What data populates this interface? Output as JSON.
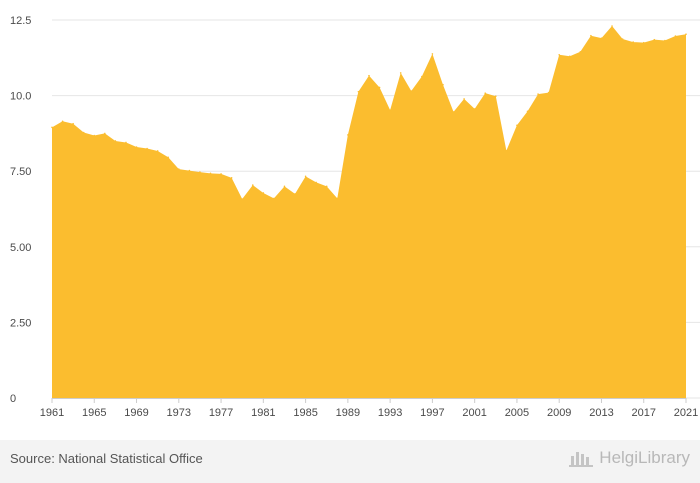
{
  "chart_data": {
    "type": "area",
    "color": "#FBBD2F",
    "x": [
      1961,
      1962,
      1963,
      1964,
      1965,
      1966,
      1967,
      1968,
      1969,
      1970,
      1971,
      1972,
      1973,
      1974,
      1975,
      1976,
      1977,
      1978,
      1979,
      1980,
      1981,
      1982,
      1983,
      1984,
      1985,
      1986,
      1987,
      1988,
      1989,
      1990,
      1991,
      1992,
      1993,
      1994,
      1995,
      1996,
      1997,
      1998,
      1999,
      2000,
      2001,
      2002,
      2003,
      2004,
      2005,
      2006,
      2007,
      2008,
      2009,
      2010,
      2011,
      2012,
      2013,
      2014,
      2015,
      2016,
      2017,
      2018,
      2019,
      2020,
      2021
    ],
    "values": [
      8.95,
      9.15,
      9.07,
      8.78,
      8.68,
      8.75,
      8.5,
      8.45,
      8.3,
      8.25,
      8.17,
      7.96,
      7.57,
      7.52,
      7.47,
      7.43,
      7.41,
      7.28,
      6.58,
      7.04,
      6.78,
      6.6,
      7.0,
      6.75,
      7.33,
      7.13,
      7.0,
      6.6,
      8.7,
      10.13,
      10.66,
      10.27,
      9.52,
      10.75,
      10.15,
      10.63,
      11.38,
      10.36,
      9.46,
      9.89,
      9.56,
      10.08,
      9.98,
      8.18,
      9.02,
      9.48,
      10.05,
      10.1,
      11.35,
      11.3,
      11.45,
      11.98,
      11.9,
      12.3,
      11.87,
      11.77,
      11.75,
      11.85,
      11.82,
      11.97,
      12.03
    ],
    "ylim": [
      0,
      12.5
    ],
    "y_ticks": [
      "0",
      "2.50",
      "5.00",
      "7.50",
      "10.0",
      "12.5"
    ],
    "y_tick_values": [
      0,
      2.5,
      5,
      7.5,
      10,
      12.5
    ],
    "x_ticks": [
      "1961",
      "1965",
      "1969",
      "1973",
      "1977",
      "1981",
      "1985",
      "1989",
      "1993",
      "1997",
      "2001",
      "2005",
      "2009",
      "2013",
      "2017",
      "2021"
    ],
    "grid": true
  },
  "footer": {
    "source": "Source: National Statistical Office",
    "brand": "HelgiLibrary"
  }
}
